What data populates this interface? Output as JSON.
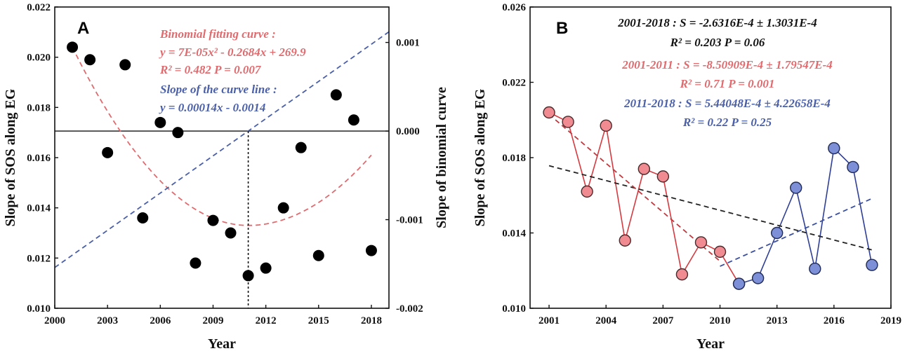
{
  "chart_data": [
    {
      "type": "scatter",
      "panel_label": "A",
      "xlabel": "Year",
      "ylabel": "Slope of SOS along EG",
      "y2label": "Slope of binomial curve",
      "xlim": [
        2000,
        2019
      ],
      "ylim": [
        0.01,
        0.022
      ],
      "y2lim": [
        -0.002,
        0.0014
      ],
      "xticks": [
        "2000",
        "2003",
        "2006",
        "2009",
        "2012",
        "2015",
        "2018"
      ],
      "yticks": [
        "0.010",
        "0.012",
        "0.014",
        "0.016",
        "0.018",
        "0.020",
        "0.022"
      ],
      "y2ticks": [
        "0.001",
        "0.000",
        "-0.001",
        "-0.002"
      ],
      "y2tick_values": [
        0.001,
        0.0,
        -0.001,
        -0.002
      ],
      "points": {
        "x": [
          2001,
          2002,
          2003,
          2004,
          2005,
          2006,
          2007,
          2008,
          2009,
          2010,
          2011,
          2012,
          2013,
          2014,
          2015,
          2016,
          2017,
          2018
        ],
        "y": [
          0.0204,
          0.0199,
          0.0162,
          0.0197,
          0.0136,
          0.0174,
          0.017,
          0.0118,
          0.0135,
          0.013,
          0.0113,
          0.0116,
          0.014,
          0.0164,
          0.0121,
          0.0185,
          0.0175,
          0.0123
        ]
      },
      "fit_curve": {
        "color": "#e06b6f",
        "x_range": [
          2001,
          2018
        ],
        "vertex_x": 2011,
        "vertex_y": 0.0133,
        "y_at_2001": 0.0204,
        "y_at_2018": 0.0161
      },
      "slope_line": {
        "color": "#4a5fa9",
        "axis": "y2",
        "slope": 0.00014,
        "intercept_at_x": 2011,
        "x_range": [
          2000,
          2019
        ]
      },
      "vertical_marker_x": 2011,
      "annotations": [
        {
          "text": "Binomial fitting curve :",
          "color": "red"
        },
        {
          "text": "y = 7E-05x² - 0.2684x + 269.9",
          "color": "red"
        },
        {
          "text": "R² = 0.482  P = 0.007",
          "color": "red"
        },
        {
          "text": "Slope of the curve line :",
          "color": "blue"
        },
        {
          "text": "y = 0.00014x - 0.0014",
          "color": "blue"
        }
      ]
    },
    {
      "type": "line",
      "panel_label": "B",
      "xlabel": "Year",
      "ylabel": "Slope of SOS along EG",
      "xlim": [
        2000,
        2019
      ],
      "ylim": [
        0.01,
        0.026
      ],
      "xticks": [
        "2001",
        "2004",
        "2007",
        "2010",
        "2013",
        "2016",
        "2019"
      ],
      "yticks": [
        "0.010",
        "0.014",
        "0.018",
        "0.022",
        "0.026"
      ],
      "series": [
        {
          "name": "2001-2011",
          "color": "#e06b6f",
          "x": [
            2001,
            2002,
            2003,
            2004,
            2005,
            2006,
            2007,
            2008,
            2009,
            2010,
            2011
          ],
          "values": [
            0.0204,
            0.0199,
            0.0162,
            0.0197,
            0.0136,
            0.0174,
            0.017,
            0.0118,
            0.0135,
            0.013,
            0.0113
          ]
        },
        {
          "name": "2011-2018",
          "color": "#4a5fa9",
          "x": [
            2011,
            2012,
            2013,
            2014,
            2015,
            2016,
            2017,
            2018
          ],
          "values": [
            0.0113,
            0.0116,
            0.014,
            0.0164,
            0.0121,
            0.0185,
            0.0175,
            0.0123
          ]
        }
      ],
      "trend_lines": [
        {
          "name": "2001-2018",
          "color": "#222222",
          "x": [
            2001,
            2018
          ],
          "y": [
            0.01757,
            0.0131
          ]
        },
        {
          "name": "2001-2011",
          "color": "#c0393e",
          "x": [
            2001,
            2010
          ],
          "y": [
            0.0203,
            0.0125
          ]
        },
        {
          "name": "2011-2018",
          "color": "#3a4fa0",
          "x": [
            2010,
            2018
          ],
          "y": [
            0.01223,
            0.01583
          ]
        }
      ],
      "annotations": [
        {
          "text": "2001-2018 : S = -2.6316E-4 ± 1.3031E-4",
          "color": "black"
        },
        {
          "text": "R² = 0.203  P = 0.06",
          "color": "black"
        },
        {
          "text": "2001-2011 : S = -8.50909E-4 ± 1.79547E-4",
          "color": "red"
        },
        {
          "text": "R² = 0.71  P = 0.001",
          "color": "red"
        },
        {
          "text": "2011-2018 : S = 5.44048E-4 ± 4.22658E-4",
          "color": "blue"
        },
        {
          "text": "R² = 0.22  P = 0.25",
          "color": "blue"
        }
      ]
    }
  ]
}
